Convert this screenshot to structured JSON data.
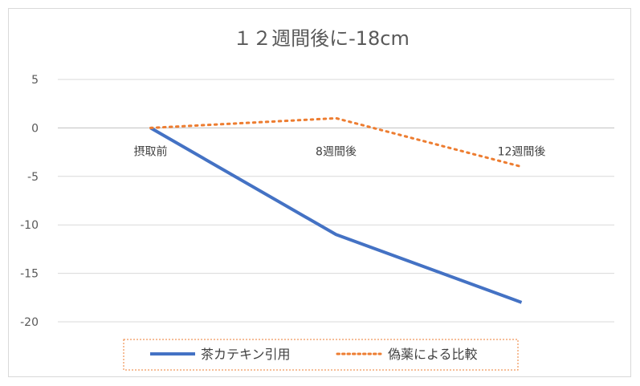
{
  "chart_data": {
    "type": "line",
    "title": "１２週間後に-18cm",
    "categories": [
      "摂取前",
      "8週間後",
      "12週間後"
    ],
    "series": [
      {
        "name": "茶カテキン引用",
        "values": [
          0,
          -11,
          -18
        ],
        "color": "#4472C4",
        "style": "solid"
      },
      {
        "name": "偽薬による比較",
        "values": [
          0,
          1,
          -4
        ],
        "color": "#ED7D31",
        "style": "dotted"
      }
    ],
    "yticks": [
      5,
      0,
      -5,
      -10,
      -15,
      -20
    ],
    "ylim": [
      -20,
      5
    ],
    "grid": true,
    "legend": "bottom"
  }
}
